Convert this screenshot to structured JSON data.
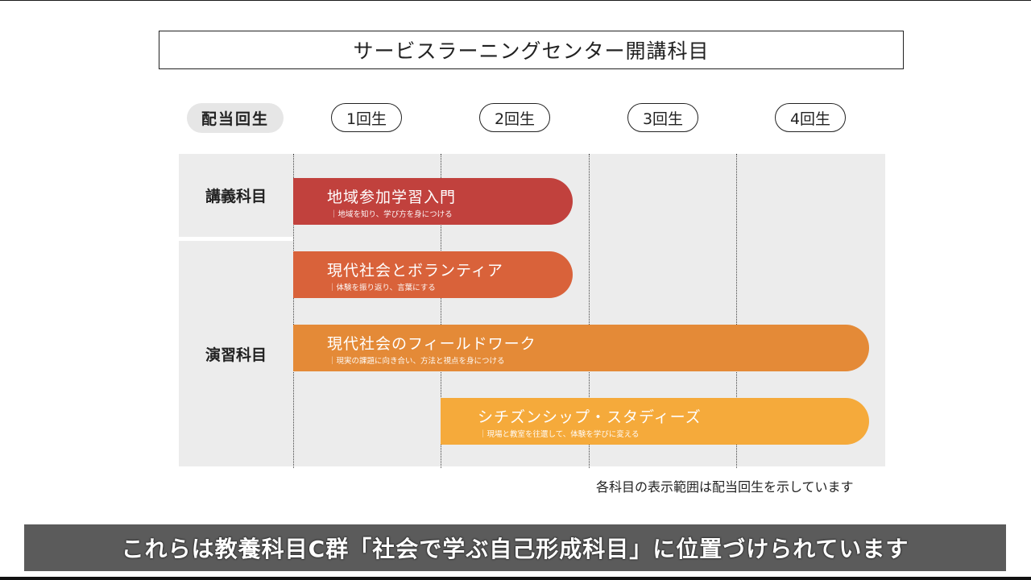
{
  "title": "サービスラーニングセンター開講科目",
  "grade_header": "配当回生",
  "years": [
    "1回生",
    "2回生",
    "3回生",
    "4回生"
  ],
  "categories": {
    "lecture": "講義科目",
    "practice": "演習科目"
  },
  "courses": [
    {
      "title": "地域参加学習入門",
      "subtitle": "｜地域を知り、学び方を身につける",
      "category": "講義科目",
      "years": [
        1,
        2
      ],
      "color": "#c1413d"
    },
    {
      "title": "現代社会とボランティア",
      "subtitle": "｜体験を振り返り、言葉にする",
      "category": "演習科目",
      "years": [
        1,
        2
      ],
      "color": "#d9623a"
    },
    {
      "title": "現代社会のフィールドワーク",
      "subtitle": "｜現実の課題に向き合い、方法と視点を身につける",
      "category": "演習科目",
      "years": [
        1,
        2,
        3,
        4
      ],
      "color": "#e48a37"
    },
    {
      "title": "シチズンシップ・スタディーズ",
      "subtitle": "｜現場と教室を往還して、体験を学びに変える",
      "category": "演習科目",
      "years": [
        2,
        3,
        4
      ],
      "color": "#f5aa3b"
    }
  ],
  "note": "各科目の表示範囲は配当回生を示しています",
  "caption": "これらは教養科目C群「社会で学ぶ自己形成科目」に位置づけられています"
}
